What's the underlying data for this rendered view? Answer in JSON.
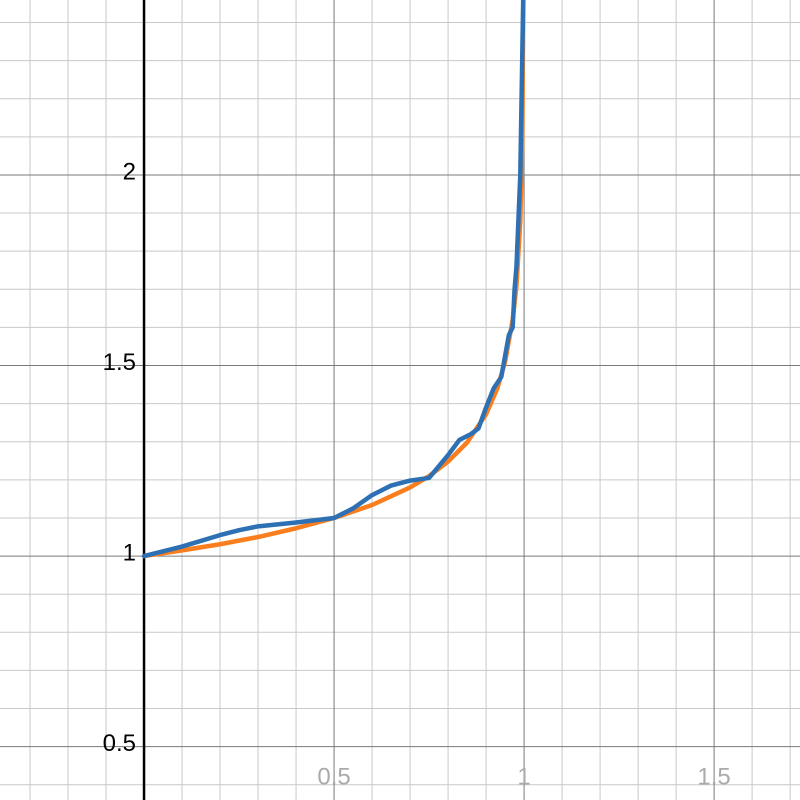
{
  "chart_data": {
    "type": "line",
    "xlim": [
      -0.379,
      1.726
    ],
    "ylim": [
      0.36,
      2.459
    ],
    "xticks": [
      0.5,
      1,
      1.5
    ],
    "yticks": [
      0.5,
      1,
      1.5,
      2
    ],
    "grid": true,
    "series": [
      {
        "color": "#fa7e1e",
        "x": [
          0,
          0.1,
          0.2,
          0.3,
          0.4,
          0.5,
          0.6,
          0.7,
          0.75,
          0.8,
          0.85,
          0.9,
          0.93,
          0.95,
          0.97,
          0.98,
          0.99,
          0.995,
          0.999
        ],
        "values": [
          1,
          1.015,
          1.031,
          1.05,
          1.073,
          1.1,
          1.134,
          1.18,
          1.21,
          1.248,
          1.298,
          1.372,
          1.441,
          1.51,
          1.62,
          1.71,
          1.88,
          2.07,
          2.59
        ]
      },
      {
        "color": "#2d70b3",
        "x": [
          0,
          0.1,
          0.2,
          0.25,
          0.3,
          0.4,
          0.5,
          0.55,
          0.6,
          0.65,
          0.7,
          0.75,
          0.8,
          0.83,
          0.86,
          0.88,
          0.9,
          0.92,
          0.94,
          0.96,
          0.97,
          0.975,
          0.98,
          0.99,
          0.995,
          1
        ],
        "values": [
          1,
          1.025,
          1.055,
          1.068,
          1.078,
          1.088,
          1.1,
          1.125,
          1.16,
          1.185,
          1.198,
          1.205,
          1.265,
          1.305,
          1.32,
          1.335,
          1.39,
          1.44,
          1.47,
          1.58,
          1.6,
          1.7,
          1.76,
          2.0,
          2.3,
          2.6
        ]
      }
    ]
  }
}
